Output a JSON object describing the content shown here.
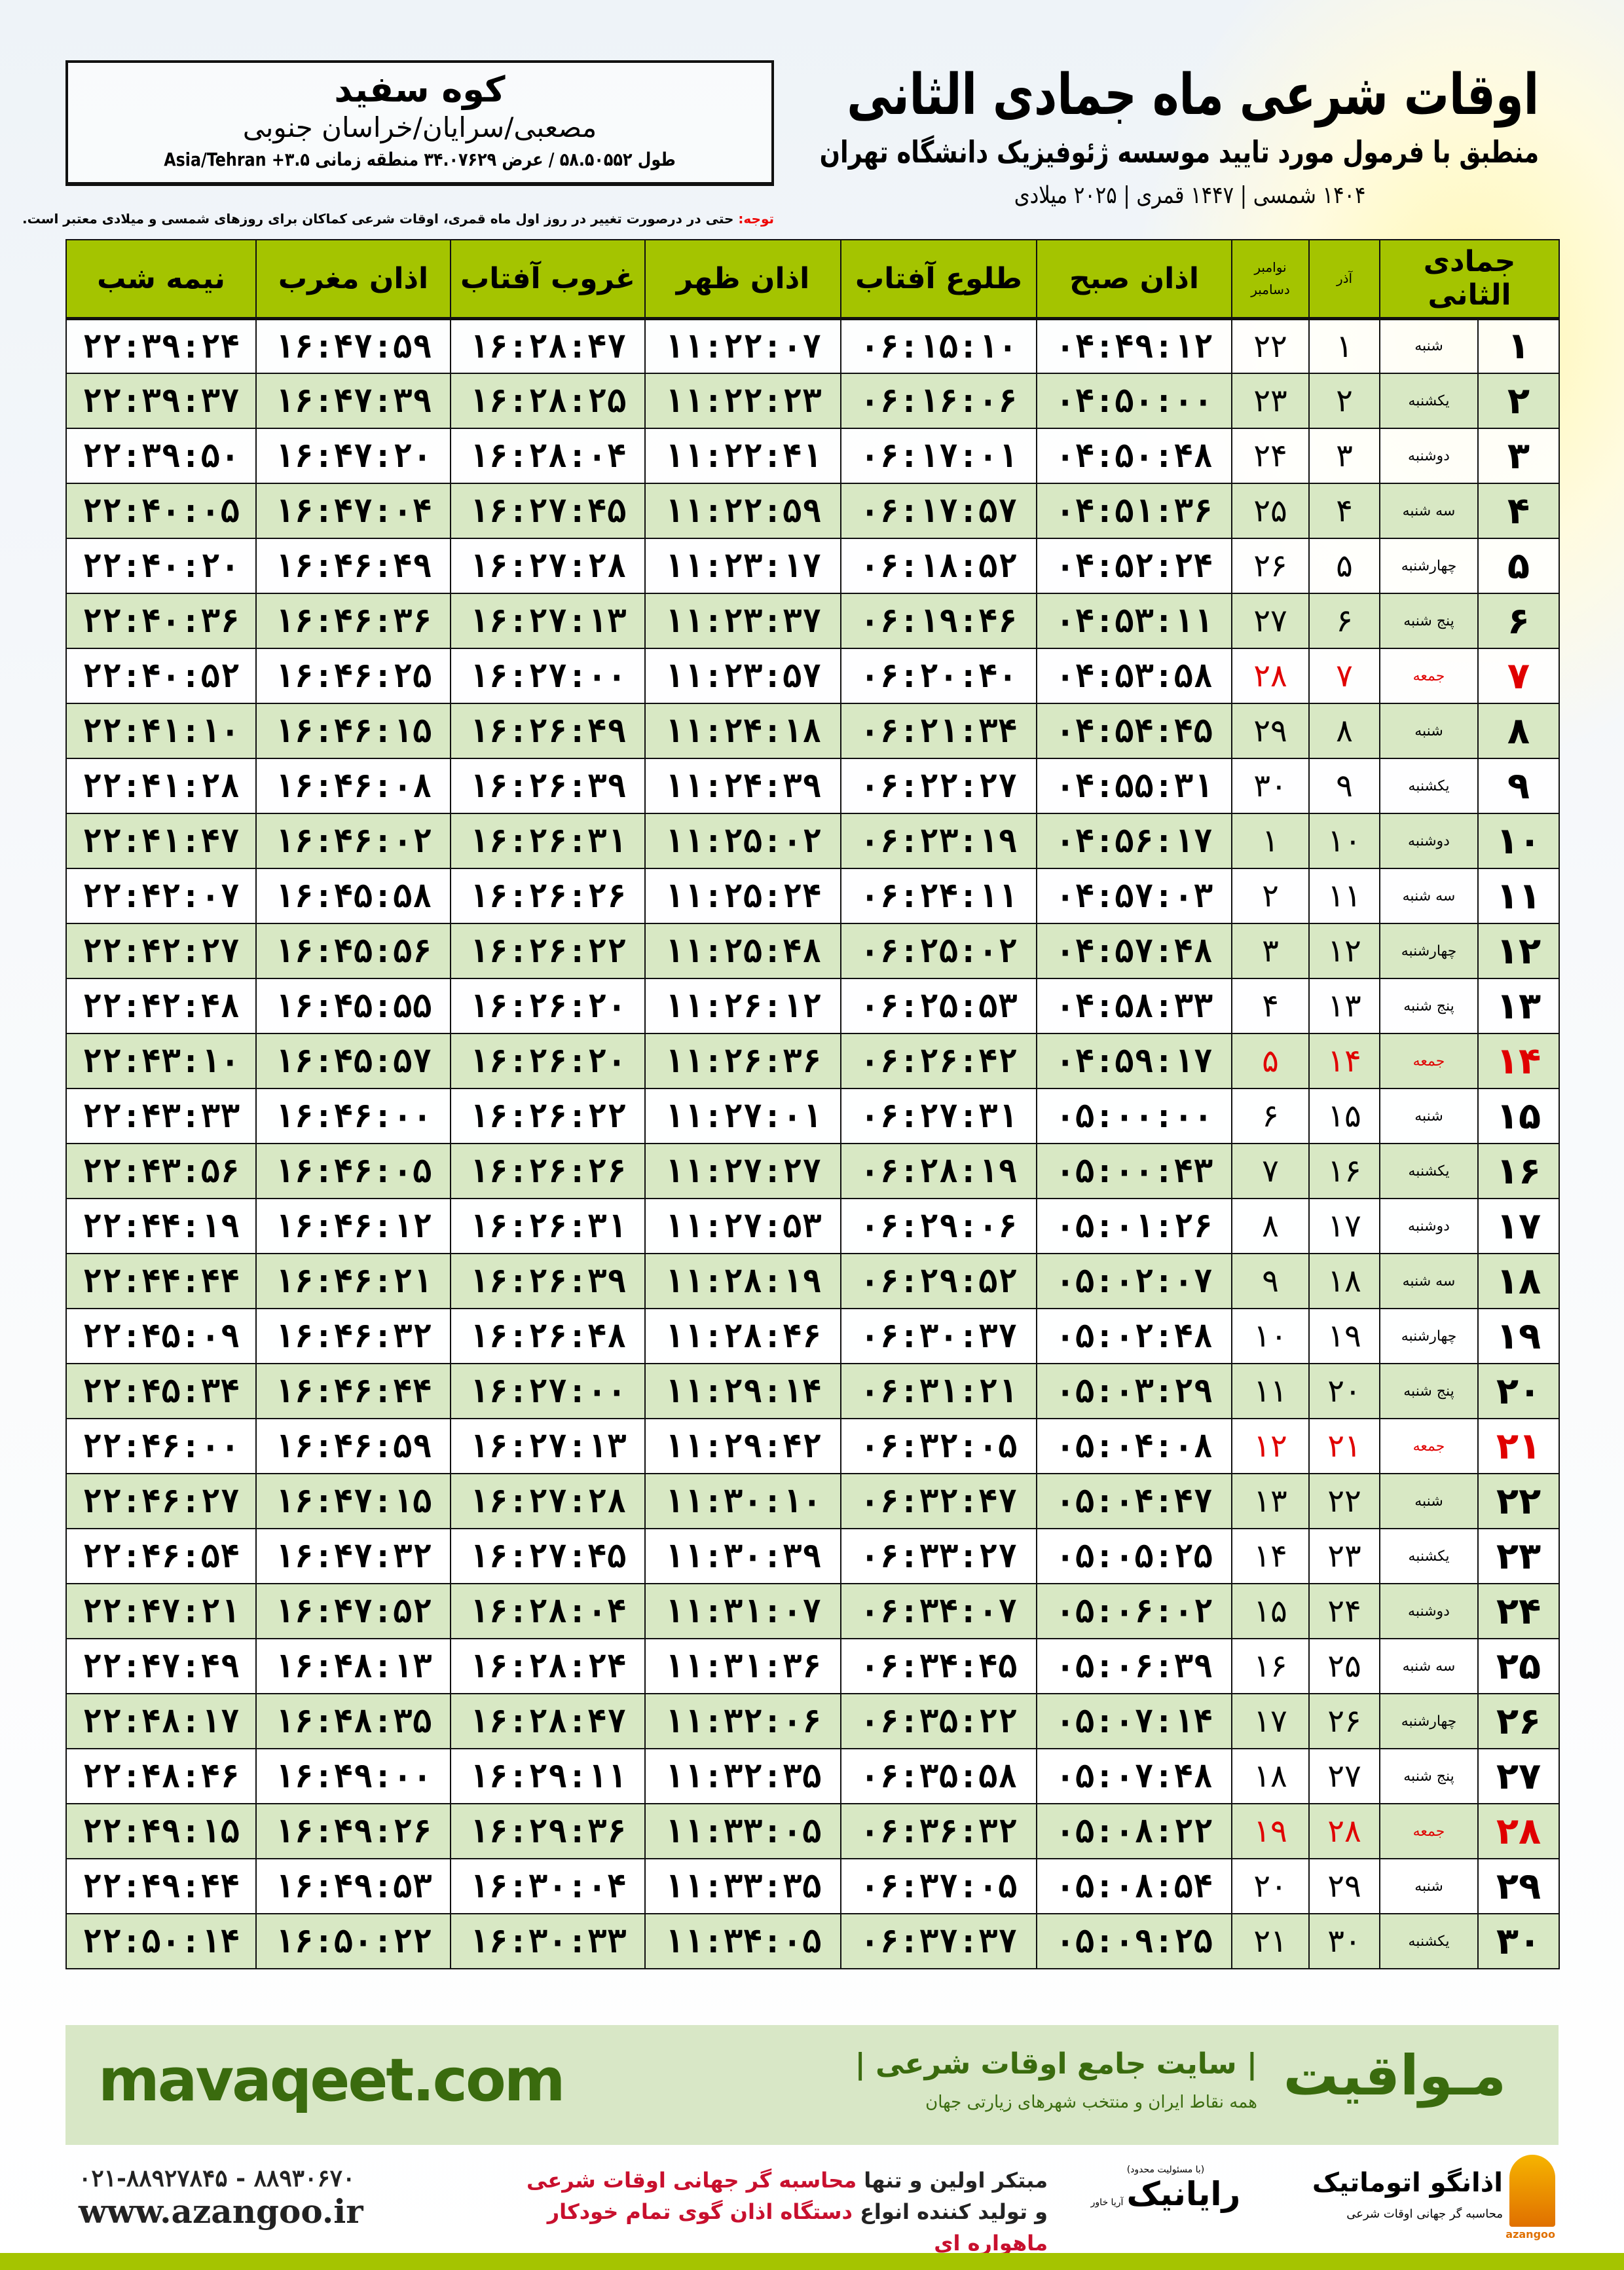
{
  "header": {
    "title": "اوقات شرعی ماه جمادی الثانی",
    "subtitle": "منطبق با فرمول مورد تایید موسسه ژئوفیزیک دانشگاه تهران",
    "dates": "۱۴۰۴ شمسی | ۱۴۴۷ قمری | ۲۰۲۵ میلادی"
  },
  "location": {
    "name": "کوه سفید",
    "region": "مصعبی/سرایان/خراسان جنوبی",
    "coords": "طول ۵۸.۵۰۵۵۲ / عرض ۳۴.۰۷۶۲۹ منطقه زمانی ۳.۵+ Asia/Tehran"
  },
  "notice": {
    "label": "توجه:",
    "text": " حتی در درصورت تغییر در روز اول ماه قمری، اوقات شرعی کماکان برای روزهای شمسی و میلادی معتبر است."
  },
  "table": {
    "headers": {
      "month": "جمادی الثانی",
      "azar": "آذر",
      "greg_top": "نوامبر",
      "greg_bottom": "دسامبر",
      "fajr": "اذان صبح",
      "sunrise": "طلوع آفتاب",
      "dhuhr": "اذان ظهر",
      "sunset": "غروب آفتاب",
      "maghrib": "اذان مغرب",
      "midnight": "نیمه شب"
    },
    "holiday_color": "#e00000",
    "header_color": "#a4c400",
    "alt_row_color": "#d8e8c4",
    "rows": [
      {
        "day": "۱",
        "weekday": "شنبه",
        "azar": "۱",
        "greg": "۲۲",
        "fajr": "۰۴:۴۹:۱۲",
        "sunrise": "۰۶:۱۵:۱۰",
        "dhuhr": "۱۱:۲۲:۰۷",
        "sunset": "۱۶:۲۸:۴۷",
        "maghrib": "۱۶:۴۷:۵۹",
        "midnight": "۲۲:۳۹:۲۴",
        "holiday": false
      },
      {
        "day": "۲",
        "weekday": "یکشنبه",
        "azar": "۲",
        "greg": "۲۳",
        "fajr": "۰۴:۵۰:۰۰",
        "sunrise": "۰۶:۱۶:۰۶",
        "dhuhr": "۱۱:۲۲:۲۳",
        "sunset": "۱۶:۲۸:۲۵",
        "maghrib": "۱۶:۴۷:۳۹",
        "midnight": "۲۲:۳۹:۳۷",
        "holiday": false
      },
      {
        "day": "۳",
        "weekday": "دوشنبه",
        "azar": "۳",
        "greg": "۲۴",
        "fajr": "۰۴:۵۰:۴۸",
        "sunrise": "۰۶:۱۷:۰۱",
        "dhuhr": "۱۱:۲۲:۴۱",
        "sunset": "۱۶:۲۸:۰۴",
        "maghrib": "۱۶:۴۷:۲۰",
        "midnight": "۲۲:۳۹:۵۰",
        "holiday": false
      },
      {
        "day": "۴",
        "weekday": "سه شنبه",
        "azar": "۴",
        "greg": "۲۵",
        "fajr": "۰۴:۵۱:۳۶",
        "sunrise": "۰۶:۱۷:۵۷",
        "dhuhr": "۱۱:۲۲:۵۹",
        "sunset": "۱۶:۲۷:۴۵",
        "maghrib": "۱۶:۴۷:۰۴",
        "midnight": "۲۲:۴۰:۰۵",
        "holiday": false
      },
      {
        "day": "۵",
        "weekday": "چهارشنبه",
        "azar": "۵",
        "greg": "۲۶",
        "fajr": "۰۴:۵۲:۲۴",
        "sunrise": "۰۶:۱۸:۵۲",
        "dhuhr": "۱۱:۲۳:۱۷",
        "sunset": "۱۶:۲۷:۲۸",
        "maghrib": "۱۶:۴۶:۴۹",
        "midnight": "۲۲:۴۰:۲۰",
        "holiday": false
      },
      {
        "day": "۶",
        "weekday": "پنج شنبه",
        "azar": "۶",
        "greg": "۲۷",
        "fajr": "۰۴:۵۳:۱۱",
        "sunrise": "۰۶:۱۹:۴۶",
        "dhuhr": "۱۱:۲۳:۳۷",
        "sunset": "۱۶:۲۷:۱۳",
        "maghrib": "۱۶:۴۶:۳۶",
        "midnight": "۲۲:۴۰:۳۶",
        "holiday": false
      },
      {
        "day": "۷",
        "weekday": "جمعه",
        "azar": "۷",
        "greg": "۲۸",
        "fajr": "۰۴:۵۳:۵۸",
        "sunrise": "۰۶:۲۰:۴۰",
        "dhuhr": "۱۱:۲۳:۵۷",
        "sunset": "۱۶:۲۷:۰۰",
        "maghrib": "۱۶:۴۶:۲۵",
        "midnight": "۲۲:۴۰:۵۲",
        "holiday": true
      },
      {
        "day": "۸",
        "weekday": "شنبه",
        "azar": "۸",
        "greg": "۲۹",
        "fajr": "۰۴:۵۴:۴۵",
        "sunrise": "۰۶:۲۱:۳۴",
        "dhuhr": "۱۱:۲۴:۱۸",
        "sunset": "۱۶:۲۶:۴۹",
        "maghrib": "۱۶:۴۶:۱۵",
        "midnight": "۲۲:۴۱:۱۰",
        "holiday": false
      },
      {
        "day": "۹",
        "weekday": "یکشنبه",
        "azar": "۹",
        "greg": "۳۰",
        "fajr": "۰۴:۵۵:۳۱",
        "sunrise": "۰۶:۲۲:۲۷",
        "dhuhr": "۱۱:۲۴:۳۹",
        "sunset": "۱۶:۲۶:۳۹",
        "maghrib": "۱۶:۴۶:۰۸",
        "midnight": "۲۲:۴۱:۲۸",
        "holiday": false
      },
      {
        "day": "۱۰",
        "weekday": "دوشنبه",
        "azar": "۱۰",
        "greg": "۱",
        "fajr": "۰۴:۵۶:۱۷",
        "sunrise": "۰۶:۲۳:۱۹",
        "dhuhr": "۱۱:۲۵:۰۲",
        "sunset": "۱۶:۲۶:۳۱",
        "maghrib": "۱۶:۴۶:۰۲",
        "midnight": "۲۲:۴۱:۴۷",
        "holiday": false
      },
      {
        "day": "۱۱",
        "weekday": "سه شنبه",
        "azar": "۱۱",
        "greg": "۲",
        "fajr": "۰۴:۵۷:۰۳",
        "sunrise": "۰۶:۲۴:۱۱",
        "dhuhr": "۱۱:۲۵:۲۴",
        "sunset": "۱۶:۲۶:۲۶",
        "maghrib": "۱۶:۴۵:۵۸",
        "midnight": "۲۲:۴۲:۰۷",
        "holiday": false
      },
      {
        "day": "۱۲",
        "weekday": "چهارشنبه",
        "azar": "۱۲",
        "greg": "۳",
        "fajr": "۰۴:۵۷:۴۸",
        "sunrise": "۰۶:۲۵:۰۲",
        "dhuhr": "۱۱:۲۵:۴۸",
        "sunset": "۱۶:۲۶:۲۲",
        "maghrib": "۱۶:۴۵:۵۶",
        "midnight": "۲۲:۴۲:۲۷",
        "holiday": false
      },
      {
        "day": "۱۳",
        "weekday": "پنج شنبه",
        "azar": "۱۳",
        "greg": "۴",
        "fajr": "۰۴:۵۸:۳۳",
        "sunrise": "۰۶:۲۵:۵۳",
        "dhuhr": "۱۱:۲۶:۱۲",
        "sunset": "۱۶:۲۶:۲۰",
        "maghrib": "۱۶:۴۵:۵۵",
        "midnight": "۲۲:۴۲:۴۸",
        "holiday": false
      },
      {
        "day": "۱۴",
        "weekday": "جمعه",
        "azar": "۱۴",
        "greg": "۵",
        "fajr": "۰۴:۵۹:۱۷",
        "sunrise": "۰۶:۲۶:۴۲",
        "dhuhr": "۱۱:۲۶:۳۶",
        "sunset": "۱۶:۲۶:۲۰",
        "maghrib": "۱۶:۴۵:۵۷",
        "midnight": "۲۲:۴۳:۱۰",
        "holiday": true
      },
      {
        "day": "۱۵",
        "weekday": "شنبه",
        "azar": "۱۵",
        "greg": "۶",
        "fajr": "۰۵:۰۰:۰۰",
        "sunrise": "۰۶:۲۷:۳۱",
        "dhuhr": "۱۱:۲۷:۰۱",
        "sunset": "۱۶:۲۶:۲۲",
        "maghrib": "۱۶:۴۶:۰۰",
        "midnight": "۲۲:۴۳:۳۳",
        "holiday": false
      },
      {
        "day": "۱۶",
        "weekday": "یکشنبه",
        "azar": "۱۶",
        "greg": "۷",
        "fajr": "۰۵:۰۰:۴۳",
        "sunrise": "۰۶:۲۸:۱۹",
        "dhuhr": "۱۱:۲۷:۲۷",
        "sunset": "۱۶:۲۶:۲۶",
        "maghrib": "۱۶:۴۶:۰۵",
        "midnight": "۲۲:۴۳:۵۶",
        "holiday": false
      },
      {
        "day": "۱۷",
        "weekday": "دوشنبه",
        "azar": "۱۷",
        "greg": "۸",
        "fajr": "۰۵:۰۱:۲۶",
        "sunrise": "۰۶:۲۹:۰۶",
        "dhuhr": "۱۱:۲۷:۵۳",
        "sunset": "۱۶:۲۶:۳۱",
        "maghrib": "۱۶:۴۶:۱۲",
        "midnight": "۲۲:۴۴:۱۹",
        "holiday": false
      },
      {
        "day": "۱۸",
        "weekday": "سه شنبه",
        "azar": "۱۸",
        "greg": "۹",
        "fajr": "۰۵:۰۲:۰۷",
        "sunrise": "۰۶:۲۹:۵۲",
        "dhuhr": "۱۱:۲۸:۱۹",
        "sunset": "۱۶:۲۶:۳۹",
        "maghrib": "۱۶:۴۶:۲۱",
        "midnight": "۲۲:۴۴:۴۴",
        "holiday": false
      },
      {
        "day": "۱۹",
        "weekday": "چهارشنبه",
        "azar": "۱۹",
        "greg": "۱۰",
        "fajr": "۰۵:۰۲:۴۸",
        "sunrise": "۰۶:۳۰:۳۷",
        "dhuhr": "۱۱:۲۸:۴۶",
        "sunset": "۱۶:۲۶:۴۸",
        "maghrib": "۱۶:۴۶:۳۲",
        "midnight": "۲۲:۴۵:۰۹",
        "holiday": false
      },
      {
        "day": "۲۰",
        "weekday": "پنج شنبه",
        "azar": "۲۰",
        "greg": "۱۱",
        "fajr": "۰۵:۰۳:۲۹",
        "sunrise": "۰۶:۳۱:۲۱",
        "dhuhr": "۱۱:۲۹:۱۴",
        "sunset": "۱۶:۲۷:۰۰",
        "maghrib": "۱۶:۴۶:۴۴",
        "midnight": "۲۲:۴۵:۳۴",
        "holiday": false
      },
      {
        "day": "۲۱",
        "weekday": "جمعه",
        "azar": "۲۱",
        "greg": "۱۲",
        "fajr": "۰۵:۰۴:۰۸",
        "sunrise": "۰۶:۳۲:۰۵",
        "dhuhr": "۱۱:۲۹:۴۲",
        "sunset": "۱۶:۲۷:۱۳",
        "maghrib": "۱۶:۴۶:۵۹",
        "midnight": "۲۲:۴۶:۰۰",
        "holiday": true
      },
      {
        "day": "۲۲",
        "weekday": "شنبه",
        "azar": "۲۲",
        "greg": "۱۳",
        "fajr": "۰۵:۰۴:۴۷",
        "sunrise": "۰۶:۳۲:۴۷",
        "dhuhr": "۱۱:۳۰:۱۰",
        "sunset": "۱۶:۲۷:۲۸",
        "maghrib": "۱۶:۴۷:۱۵",
        "midnight": "۲۲:۴۶:۲۷",
        "holiday": false
      },
      {
        "day": "۲۳",
        "weekday": "یکشنبه",
        "azar": "۲۳",
        "greg": "۱۴",
        "fajr": "۰۵:۰۵:۲۵",
        "sunrise": "۰۶:۳۳:۲۷",
        "dhuhr": "۱۱:۳۰:۳۹",
        "sunset": "۱۶:۲۷:۴۵",
        "maghrib": "۱۶:۴۷:۳۲",
        "midnight": "۲۲:۴۶:۵۴",
        "holiday": false
      },
      {
        "day": "۲۴",
        "weekday": "دوشنبه",
        "azar": "۲۴",
        "greg": "۱۵",
        "fajr": "۰۵:۰۶:۰۲",
        "sunrise": "۰۶:۳۴:۰۷",
        "dhuhr": "۱۱:۳۱:۰۷",
        "sunset": "۱۶:۲۸:۰۴",
        "maghrib": "۱۶:۴۷:۵۲",
        "midnight": "۲۲:۴۷:۲۱",
        "holiday": false
      },
      {
        "day": "۲۵",
        "weekday": "سه شنبه",
        "azar": "۲۵",
        "greg": "۱۶",
        "fajr": "۰۵:۰۶:۳۹",
        "sunrise": "۰۶:۳۴:۴۵",
        "dhuhr": "۱۱:۳۱:۳۶",
        "sunset": "۱۶:۲۸:۲۴",
        "maghrib": "۱۶:۴۸:۱۳",
        "midnight": "۲۲:۴۷:۴۹",
        "holiday": false
      },
      {
        "day": "۲۶",
        "weekday": "چهارشنبه",
        "azar": "۲۶",
        "greg": "۱۷",
        "fajr": "۰۵:۰۷:۱۴",
        "sunrise": "۰۶:۳۵:۲۲",
        "dhuhr": "۱۱:۳۲:۰۶",
        "sunset": "۱۶:۲۸:۴۷",
        "maghrib": "۱۶:۴۸:۳۵",
        "midnight": "۲۲:۴۸:۱۷",
        "holiday": false
      },
      {
        "day": "۲۷",
        "weekday": "پنج شنبه",
        "azar": "۲۷",
        "greg": "۱۸",
        "fajr": "۰۵:۰۷:۴۸",
        "sunrise": "۰۶:۳۵:۵۸",
        "dhuhr": "۱۱:۳۲:۳۵",
        "sunset": "۱۶:۲۹:۱۱",
        "maghrib": "۱۶:۴۹:۰۰",
        "midnight": "۲۲:۴۸:۴۶",
        "holiday": false
      },
      {
        "day": "۲۸",
        "weekday": "جمعه",
        "azar": "۲۸",
        "greg": "۱۹",
        "fajr": "۰۵:۰۸:۲۲",
        "sunrise": "۰۶:۳۶:۳۲",
        "dhuhr": "۱۱:۳۳:۰۵",
        "sunset": "۱۶:۲۹:۳۶",
        "maghrib": "۱۶:۴۹:۲۶",
        "midnight": "۲۲:۴۹:۱۵",
        "holiday": true
      },
      {
        "day": "۲۹",
        "weekday": "شنبه",
        "azar": "۲۹",
        "greg": "۲۰",
        "fajr": "۰۵:۰۸:۵۴",
        "sunrise": "۰۶:۳۷:۰۵",
        "dhuhr": "۱۱:۳۳:۳۵",
        "sunset": "۱۶:۳۰:۰۴",
        "maghrib": "۱۶:۴۹:۵۳",
        "midnight": "۲۲:۴۹:۴۴",
        "holiday": false
      },
      {
        "day": "۳۰",
        "weekday": "یکشنبه",
        "azar": "۳۰",
        "greg": "۲۱",
        "fajr": "۰۵:۰۹:۲۵",
        "sunrise": "۰۶:۳۷:۳۷",
        "dhuhr": "۱۱:۳۴:۰۵",
        "sunset": "۱۶:۳۰:۳۳",
        "maghrib": "۱۶:۵۰:۲۲",
        "midnight": "۲۲:۵۰:۱۴",
        "holiday": false
      }
    ]
  },
  "banner": {
    "brand": "مـواقیت",
    "tagline": "| سایت جامع اوقات شرعی |",
    "tagline_sub": "همه نقاط ایران و منتخب شهرهای زیارتی جهان",
    "site": "mavaqeet.com",
    "color": "#3a6b0e"
  },
  "footer": {
    "promo_line1_a": "مبتکر اولین و تنها ",
    "promo_line1_b": "محاسبه گر جهانی اوقات شرعی",
    "promo_line2_a": "و تولید کننده انواع ",
    "promo_line2_b": "دستگاه اذان گوی تمام خودکار ماهواره ای",
    "phone": "۰۲۱-۸۸۹۲۷۸۴۵ - ۸۸۹۳۰۶۷۰",
    "website": "www.azangoo.ir",
    "rayanik_note": "(با مسئولیت محدود)",
    "rayanik_name": "رایانیک",
    "rayanik_sub": "آریا خاور",
    "azangoo_name": "اذانگو اتوماتیک",
    "azangoo_caption": "محاسبه گر جهانی اوقات شرعی",
    "azangoo_en": "azangoo"
  }
}
